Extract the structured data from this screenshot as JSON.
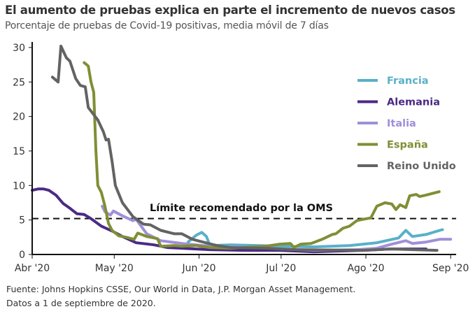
{
  "title": "El aumento de pruebas explica en parte el incremento de nuevos casos",
  "subtitle": "Porcentaje de pruebas de Covid-19 positivas, media móvil de 7 días",
  "footer": {
    "source": "Fuente: Johns Hopkins CSSE, Our World in Data, J.P. Morgan Asset Management.",
    "date": "Datos a 1 de septiembre de 2020."
  },
  "chart_data": {
    "type": "line",
    "title": "El aumento de pruebas explica en parte el incremento de nuevos casos",
    "xlabel": "",
    "ylabel": "",
    "x_unit": "days since 1 Apr 2020",
    "xlim": [
      0,
      155
    ],
    "ylim": [
      0,
      30
    ],
    "yticks": [
      0,
      5,
      10,
      15,
      20,
      25,
      30
    ],
    "xticks": [
      {
        "day": 0,
        "label": "Abr '20"
      },
      {
        "day": 30,
        "label": "May '20"
      },
      {
        "day": 61,
        "label": "Jun '20"
      },
      {
        "day": 91,
        "label": "Jul '20"
      },
      {
        "day": 122,
        "label": "Ago '20"
      },
      {
        "day": 153,
        "label": "Sep '20"
      }
    ],
    "legend_position": "right",
    "reference_line": {
      "value": 5.2,
      "label": "Límite recomendado por la OMS",
      "color": "#111111"
    },
    "series": [
      {
        "name": "Francia",
        "color": "#5ab0c8",
        "points": [
          [
            57,
            1.8
          ],
          [
            60,
            2.8
          ],
          [
            62,
            3.2
          ],
          [
            63.7,
            2.6
          ],
          [
            65,
            1.3
          ],
          [
            72.6,
            1.4
          ],
          [
            83,
            1.3
          ],
          [
            90.5,
            1.2
          ],
          [
            103,
            1.1
          ],
          [
            116,
            1.3
          ],
          [
            126,
            1.7
          ],
          [
            134,
            2.4
          ],
          [
            136.6,
            3.5
          ],
          [
            139,
            2.6
          ],
          [
            144,
            2.9
          ],
          [
            149,
            3.5
          ],
          [
            150,
            3.6
          ]
        ]
      },
      {
        "name": "Alemania",
        "color": "#4b2a85",
        "points": [
          [
            0,
            9.3
          ],
          [
            2.3,
            9.5
          ],
          [
            4.1,
            9.5
          ],
          [
            6.1,
            9.3
          ],
          [
            8.7,
            8.6
          ],
          [
            11.3,
            7.4
          ],
          [
            13.8,
            6.7
          ],
          [
            16.4,
            5.9
          ],
          [
            19,
            5.8
          ],
          [
            21.5,
            5.2
          ],
          [
            25.3,
            4.1
          ],
          [
            29.2,
            3.4
          ],
          [
            33,
            2.6
          ],
          [
            38,
            1.7
          ],
          [
            44.5,
            1.4
          ],
          [
            49.6,
            1.0
          ],
          [
            54.7,
            0.9
          ],
          [
            65,
            0.7
          ],
          [
            77.7,
            0.6
          ],
          [
            90.5,
            0.6
          ],
          [
            103,
            0.4
          ],
          [
            121,
            0.6
          ],
          [
            131,
            0.8
          ],
          [
            144,
            0.8
          ]
        ]
      },
      {
        "name": "Italia",
        "color": "#a08fd8",
        "points": [
          [
            25.6,
            7.0
          ],
          [
            26.6,
            6.2
          ],
          [
            28.6,
            5.7
          ],
          [
            29.7,
            6.3
          ],
          [
            33,
            5.6
          ],
          [
            36.8,
            4.9
          ],
          [
            38,
            5.1
          ],
          [
            41.9,
            3.0
          ],
          [
            47,
            2.0
          ],
          [
            54.7,
            1.6
          ],
          [
            62.4,
            1.3
          ],
          [
            70,
            1.1
          ],
          [
            85.4,
            1.0
          ],
          [
            90.5,
            0.8
          ],
          [
            103,
            0.6
          ],
          [
            118.7,
            0.7
          ],
          [
            126,
            0.9
          ],
          [
            131.5,
            1.5
          ],
          [
            136.6,
            2.0
          ],
          [
            139,
            1.6
          ],
          [
            144,
            1.8
          ],
          [
            149,
            2.2
          ],
          [
            153,
            2.2
          ]
        ]
      },
      {
        "name": "España",
        "color": "#7f8f35",
        "points": [
          [
            19,
            27.8
          ],
          [
            20.5,
            27.3
          ],
          [
            21.5,
            25
          ],
          [
            22.5,
            23.5
          ],
          [
            23.3,
            15
          ],
          [
            24,
            10
          ],
          [
            25.3,
            9
          ],
          [
            26.6,
            7
          ],
          [
            27.9,
            4.5
          ],
          [
            29.2,
            3.5
          ],
          [
            31.7,
            2.7
          ],
          [
            34.3,
            2.5
          ],
          [
            37.3,
            2.2
          ],
          [
            38.6,
            3.1
          ],
          [
            41.9,
            2.6
          ],
          [
            45.8,
            2.3
          ],
          [
            47,
            1.2
          ],
          [
            52,
            1.3
          ],
          [
            54.7,
            1.2
          ],
          [
            59.8,
            1.3
          ],
          [
            65,
            1.0
          ],
          [
            72.6,
            0.9
          ],
          [
            85.4,
            1.2
          ],
          [
            90.5,
            1.5
          ],
          [
            94.4,
            1.6
          ],
          [
            95.7,
            1.0
          ],
          [
            98.2,
            1.5
          ],
          [
            102,
            1.6
          ],
          [
            106,
            2.2
          ],
          [
            109.7,
            2.9
          ],
          [
            111,
            3.0
          ],
          [
            113.6,
            3.8
          ],
          [
            116,
            4.1
          ],
          [
            118.7,
            4.9
          ],
          [
            121,
            5.1
          ],
          [
            123.8,
            5.3
          ],
          [
            126,
            7.0
          ],
          [
            129,
            7.5
          ],
          [
            131.5,
            7.3
          ],
          [
            133,
            6.5
          ],
          [
            134.5,
            7.2
          ],
          [
            136.6,
            6.8
          ],
          [
            138,
            8.5
          ],
          [
            140.4,
            8.7
          ],
          [
            141.7,
            8.4
          ],
          [
            144,
            8.6
          ],
          [
            146.8,
            8.9
          ],
          [
            148.8,
            9.1
          ]
        ]
      },
      {
        "name": "Reino Unido",
        "color": "#636363",
        "points": [
          [
            7.4,
            25.7
          ],
          [
            9.5,
            25.0
          ],
          [
            10.5,
            30.2
          ],
          [
            12.5,
            28.5
          ],
          [
            13.8,
            28.0
          ],
          [
            15.9,
            25.5
          ],
          [
            17.6,
            24.5
          ],
          [
            19.4,
            24.3
          ],
          [
            20.5,
            21.3
          ],
          [
            24,
            19.5
          ],
          [
            26,
            17.8
          ],
          [
            27,
            16.6
          ],
          [
            27.9,
            16.7
          ],
          [
            29.2,
            13.5
          ],
          [
            30.4,
            10
          ],
          [
            33,
            7.5
          ],
          [
            36.8,
            5.5
          ],
          [
            40.7,
            4.4
          ],
          [
            43.2,
            4.3
          ],
          [
            47,
            3.5
          ],
          [
            52,
            3.0
          ],
          [
            54.7,
            3.0
          ],
          [
            58.6,
            2.2
          ],
          [
            62.4,
            1.8
          ],
          [
            67.5,
            1.3
          ],
          [
            72.6,
            1.0
          ],
          [
            85.4,
            0.9
          ],
          [
            95.7,
            0.7
          ],
          [
            121,
            0.6
          ],
          [
            131,
            0.8
          ],
          [
            148,
            0.6
          ]
        ]
      }
    ]
  }
}
